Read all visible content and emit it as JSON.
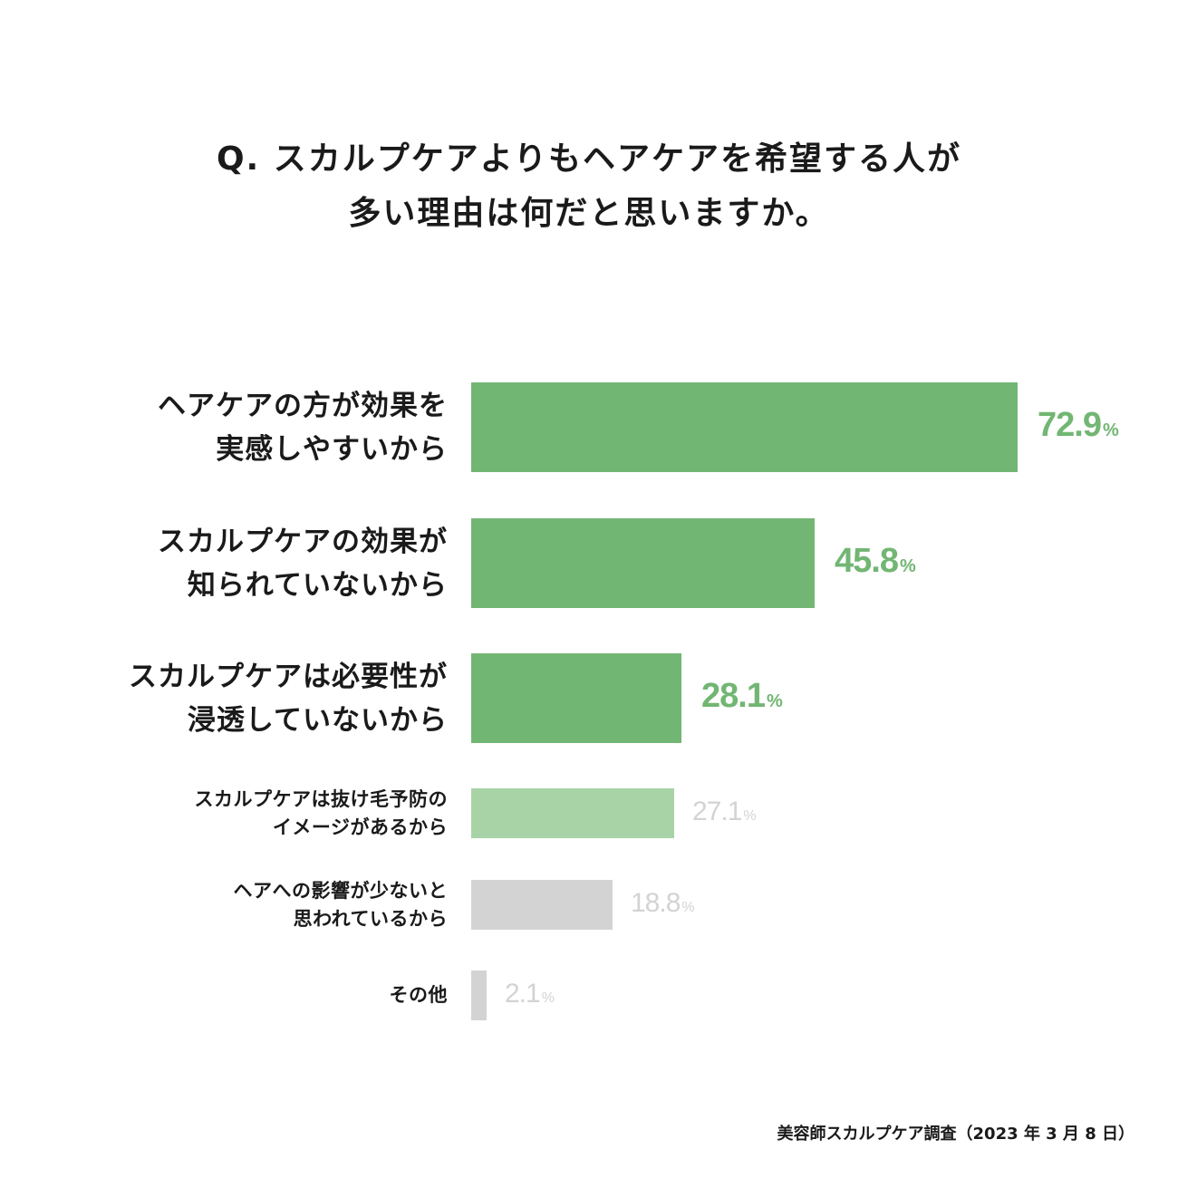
{
  "chart_data": {
    "type": "bar",
    "orientation": "horizontal",
    "title_lines": [
      "Q. スカルプケアよりもヘアケアを希望する人が",
      "多い理由は何だと思いますか。"
    ],
    "categories": [
      [
        "ヘアケアの方が効果を",
        "実感しやすいから"
      ],
      [
        "スカルプケアの効果が",
        "知られていないから"
      ],
      [
        "スカルプケアは必要性が",
        "浸透していないから"
      ],
      [
        "スカルプケアは抜け毛予防の",
        "イメージがあるから"
      ],
      [
        "ヘアへの影響が少ないと",
        "思われているから"
      ],
      [
        "その他"
      ]
    ],
    "values": [
      72.9,
      45.8,
      28.1,
      27.1,
      18.8,
      2.1
    ],
    "value_labels": [
      "72.9",
      "45.8",
      "28.1",
      "27.1",
      "18.8",
      "2.1"
    ],
    "unit": "%",
    "bar_colors": [
      "#72b673",
      "#72b673",
      "#72b673",
      "#a8d3a6",
      "#d3d3d3",
      "#d3d3d3"
    ],
    "label_colors": [
      "#72b673",
      "#72b673",
      "#72b673",
      "#d3d3d3",
      "#d3d3d3",
      "#d3d3d3"
    ],
    "emphasis": [
      "big",
      "big",
      "big",
      "small",
      "small",
      "small"
    ],
    "xlim": [
      0,
      72.9
    ],
    "grid": false,
    "source": "美容師スカルプケア調査（2023 年 3 月 8 日）"
  }
}
